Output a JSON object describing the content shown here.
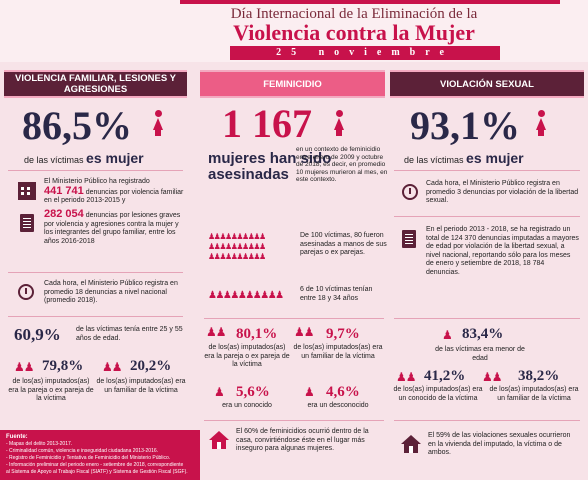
{
  "header": {
    "line1": "Día Internacional de la Eliminación de la",
    "line2": "Violencia contra la Mujer",
    "date": "25 noviembre"
  },
  "col1": {
    "band": "VIOLENCIA FAMILIAR, LESIONES Y AGRESIONES",
    "big": "86,5%",
    "sub1": "de las víctimas",
    "sub2": "es mujer",
    "mp_lead": "El Ministerio Público ha registrado",
    "mp_num": "441 741",
    "mp_rest": "denuncias por violencia familiar en el periodo 2013-2015 y",
    "mp2_num": "282 054",
    "mp2_rest": "denuncias por lesiones graves por violencia y agresiones contra la mujer y los integrantes del grupo familiar, entre los años 2016-2018",
    "hora": "Cada hora, el Ministerio Público registra en promedio 18 denuncias a nivel nacional (promedio 2018).",
    "age_pct": "60,9%",
    "age_text": "de las víctimas tenía entre 25 y 55 años de edad.",
    "p1": "79,8%",
    "p1_text": "de los(as) imputados(as) era la pareja o ex pareja de la víctima",
    "p2": "20,2%",
    "p2_text": "de los(as) imputados(as) era un familiar de la víctima",
    "fuente_title": "Fuente:",
    "fuente": [
      "- Mapas del delito 2013-2017.",
      "- Criminalidad común, violencia e inseguridad ciudadana 2013-2016.",
      "- Registro de Feminicidio y Tentativa de Feminicidio del Ministerio Público.",
      "- Información preliminar del periodo enero - setiembre de 2018, correspondiente",
      "  al Sistema de Apoyo al Trabajo Fiscal (SIATF) y Sistema de Gestión Fiscal (SGF)."
    ]
  },
  "col2": {
    "band": "FEMINICIDIO",
    "big": "1 167",
    "head1": "mujeres han sido",
    "head2": "asesinadas",
    "head_rest": "en un contexto de feminicidio entre enero de 2009 y octubre de 2018, es decir, en promedio 10 mujeres murieron al mes, en este contexto.",
    "of100": "De 100 víctimas, 80 fueron asesinadas a manos de sus parejas o ex parejas.",
    "of10": "6 de 10 víctimas tenían entre 18 y 34 años",
    "p1": "80,1%",
    "p1_text": "de los(as) imputados(as) era la pareja o ex pareja de la víctima",
    "p2": "9,7%",
    "p2_text": "de los(as) imputados(as) era un familiar de la víctima",
    "p3": "5,6%",
    "p3_text": "era un conocido",
    "p4": "4,6%",
    "p4_text": "era un desconocido",
    "home": "El 60% de feminicidios ocurrió dentro de la casa, convirtiéndose éste en el lugar más inseguro para algunas mujeres."
  },
  "col3": {
    "band": "VIOLACIÓN SEXUAL",
    "big": "93,1%",
    "sub1": "de las víctimas",
    "sub2": "es mujer",
    "hora": "Cada hora, el Ministerio Público registra en promedio 3 denuncias por violación de la libertad sexual.",
    "periodo": "En el periodo 2013 - 2018, se ha registrado un total de 124 370 denuncias imputadas a mayores de edad por violación de la libertad sexual, a nivel nacional, reportando sólo para los meses de enero y setiembre de 2018, 18 784 denuncias.",
    "minor_pct": "83,4%",
    "minor_text": "de las víctimas era menor de edad",
    "p1": "41,2%",
    "p1_text": "de los(as) imputados(as) era un conocido de la víctima",
    "p2": "38,2%",
    "p2_text": "de los(as) imputados(as) era un familiar de la víctima",
    "home": "El 59% de las violaciones sexuales ocurrieron en la vivienda del imputado, la víctima o de ambos."
  },
  "colors": {
    "accent": "#c8124b",
    "dark": "#5c2138",
    "pink_band": "#ec5d86",
    "bg": "#f7e3e8"
  }
}
